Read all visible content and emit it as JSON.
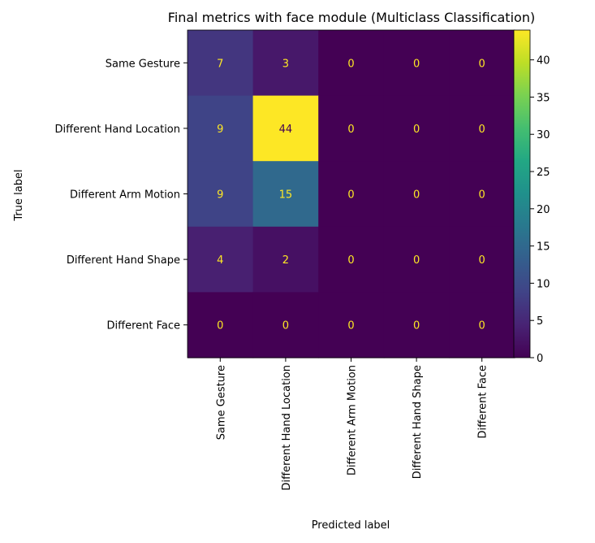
{
  "chart_data": {
    "type": "heatmap",
    "title": "Final metrics with face module (Multiclass Classification)",
    "xlabel": "Predicted label",
    "ylabel": "True label",
    "x_categories": [
      "Same Gesture",
      "Different Hand Location",
      "Different Arm Motion",
      "Different Hand Shape",
      "Different Face"
    ],
    "y_categories": [
      "Same Gesture",
      "Different Hand Location",
      "Different Arm Motion",
      "Different Hand Shape",
      "Different Face"
    ],
    "values": [
      [
        7,
        3,
        0,
        0,
        0
      ],
      [
        9,
        44,
        0,
        0,
        0
      ],
      [
        9,
        15,
        0,
        0,
        0
      ],
      [
        4,
        2,
        0,
        0,
        0
      ],
      [
        0,
        0,
        0,
        0,
        0
      ]
    ],
    "colormap": "viridis",
    "colorbar": {
      "min": 0,
      "max": 44,
      "ticks": [
        0,
        5,
        10,
        15,
        20,
        25,
        30,
        35,
        40
      ]
    },
    "grid": false
  }
}
